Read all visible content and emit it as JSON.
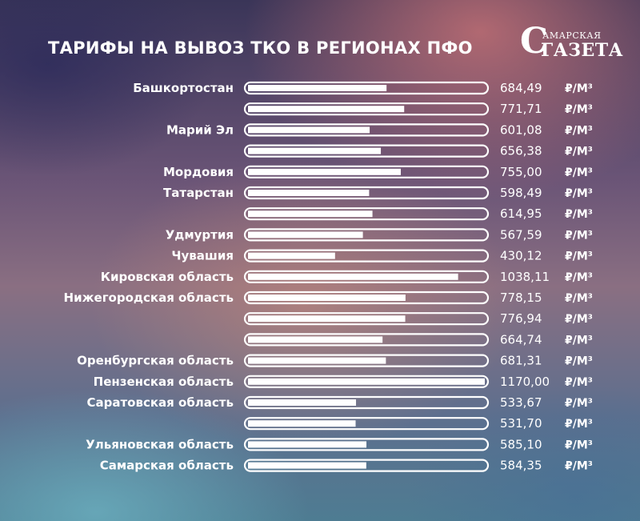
{
  "title": "ТАРИФЫ НА ВЫВОЗ ТКО В РЕГИОНАХ ПФО",
  "logo": {
    "small": "АМАРСКАЯ",
    "big_initial": "С",
    "big_rest": "АЗЕТА",
    "big_g": "Г"
  },
  "colors": {
    "bar_fill": "#ffffff",
    "bar_outline": "#ffffff",
    "text": "#ffffff"
  },
  "chart_data": {
    "type": "bar",
    "orientation": "horizontal",
    "categories": [
      "Башкортостан",
      "",
      "Марий Эл",
      "",
      "Мордовия",
      "Татарстан",
      "",
      "Удмуртия",
      "Чувашия",
      "Кировская область",
      "Нижегородская область",
      "",
      "",
      "Оренбургская область",
      "Пензенская область",
      "Саратовская область",
      "",
      "Ульяновская область",
      "Самарская область"
    ],
    "values": [
      684.49,
      771.71,
      601.08,
      656.38,
      755.0,
      598.49,
      614.95,
      567.59,
      430.12,
      1038.11,
      778.15,
      776.94,
      664.74,
      681.31,
      1170.0,
      533.67,
      531.7,
      585.1,
      584.35
    ],
    "value_labels": [
      "684,49",
      "771,71",
      "601,08",
      "656,38",
      "755,00",
      "598,49",
      "614,95",
      "567,59",
      "430,12",
      "1038,11",
      "778,15",
      "776,94",
      "664,74",
      "681,31",
      "1170,00",
      "533,67",
      "531,70",
      "585,10",
      "584,35"
    ],
    "unit": "₽/М³",
    "xlim": [
      0,
      1170
    ]
  }
}
